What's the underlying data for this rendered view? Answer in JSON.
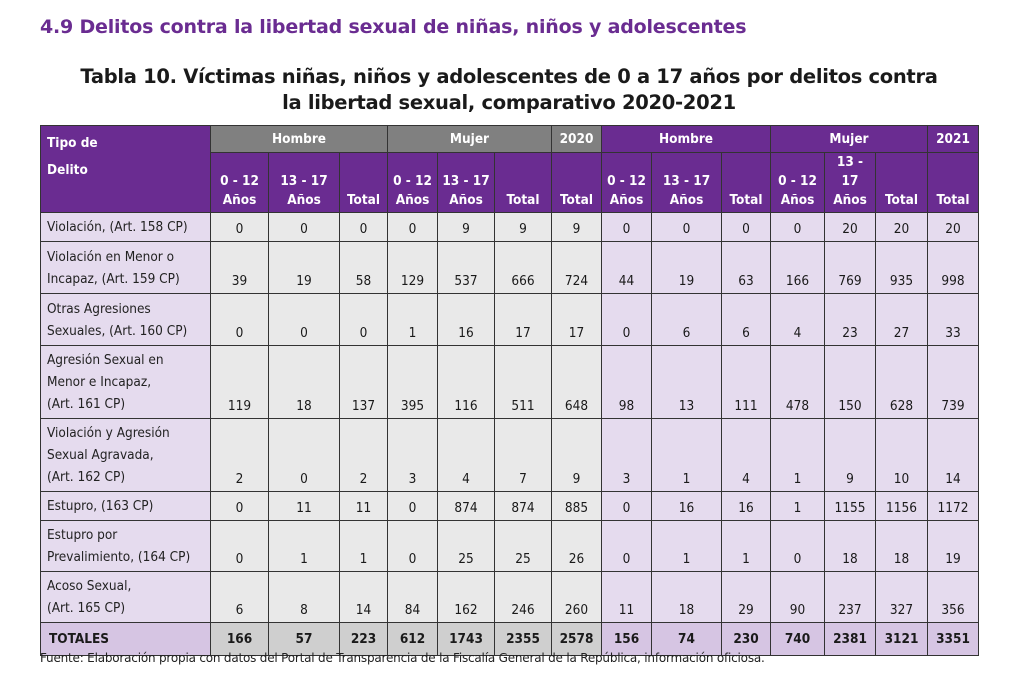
{
  "section_title": "4.9 Delitos contra la libertad sexual de niñas, niños y adolescentes",
  "table_title_line1": "Tabla 10. Víctimas niñas, niños y adolescentes de 0 a 17 años por delitos contra",
  "table_title_line2": "la libertad sexual, comparativo 2020-2021",
  "header": {
    "tipo_line1": "Tipo de",
    "tipo_line2": "Delito",
    "hombre": "Hombre",
    "mujer": "Mujer",
    "year_2020": "2020",
    "year_2021": "2021",
    "age_0_12_a": "0 - 12",
    "age_0_12_b": "Años",
    "age_13_17_a": "13 - 17",
    "age_13_17_b": "Años",
    "total": "Total"
  },
  "rows": [
    {
      "label_lines": [
        "Violación, (Art. 158 CP)"
      ],
      "values": [
        "0",
        "0",
        "0",
        "0",
        "9",
        "9",
        "9",
        "0",
        "0",
        "0",
        "0",
        "20",
        "20",
        "20"
      ]
    },
    {
      "label_lines": [
        "Violación en Menor o",
        "Incapaz, (Art. 159 CP)"
      ],
      "values": [
        "39",
        "19",
        "58",
        "129",
        "537",
        "666",
        "724",
        "44",
        "19",
        "63",
        "166",
        "769",
        "935",
        "998"
      ]
    },
    {
      "label_lines": [
        "Otras Agresiones",
        "Sexuales, (Art. 160 CP)"
      ],
      "values": [
        "0",
        "0",
        "0",
        "1",
        "16",
        "17",
        "17",
        "0",
        "6",
        "6",
        "4",
        "23",
        "27",
        "33"
      ]
    },
    {
      "label_lines": [
        "Agresión Sexual en",
        "Menor e Incapaz,",
        "(Art. 161 CP)"
      ],
      "values": [
        "119",
        "18",
        "137",
        "395",
        "116",
        "511",
        "648",
        "98",
        "13",
        "111",
        "478",
        "150",
        "628",
        "739"
      ]
    },
    {
      "label_lines": [
        "Violación y Agresión",
        "Sexual Agravada,",
        "(Art. 162 CP)"
      ],
      "values": [
        "2",
        "0",
        "2",
        "3",
        "4",
        "7",
        "9",
        "3",
        "1",
        "4",
        "1",
        "9",
        "10",
        "14"
      ]
    },
    {
      "label_lines": [
        "Estupro, (163 CP)"
      ],
      "values": [
        "0",
        "11",
        "11",
        "0",
        "874",
        "874",
        "885",
        "0",
        "16",
        "16",
        "1",
        "1155",
        "1156",
        "1172"
      ]
    },
    {
      "label_lines": [
        "Estupro por",
        "Prevalimiento, (164 CP)"
      ],
      "values": [
        "0",
        "1",
        "1",
        "0",
        "25",
        "25",
        "26",
        "0",
        "1",
        "1",
        "0",
        "18",
        "18",
        "19"
      ]
    },
    {
      "label_lines": [
        "Acoso Sexual,",
        "(Art. 165 CP)"
      ],
      "values": [
        "6",
        "8",
        "14",
        "84",
        "162",
        "246",
        "260",
        "11",
        "18",
        "29",
        "90",
        "237",
        "327",
        "356"
      ]
    }
  ],
  "totals": {
    "label": "TOTALES",
    "values": [
      "166",
      "57",
      "223",
      "612",
      "1743",
      "2355",
      "2578",
      "156",
      "74",
      "230",
      "740",
      "2381",
      "3121",
      "3351"
    ]
  },
  "source": "Fuente: Elaboración propia con datos del Portal de Transparencia de la Fiscalía General de la República, información oficiosa.",
  "colors": {
    "purple_header": "#6a2c91",
    "gray_header": "#808080",
    "lavender_cell": "#e5dbee",
    "light_gray_cell": "#e9e9e9"
  }
}
